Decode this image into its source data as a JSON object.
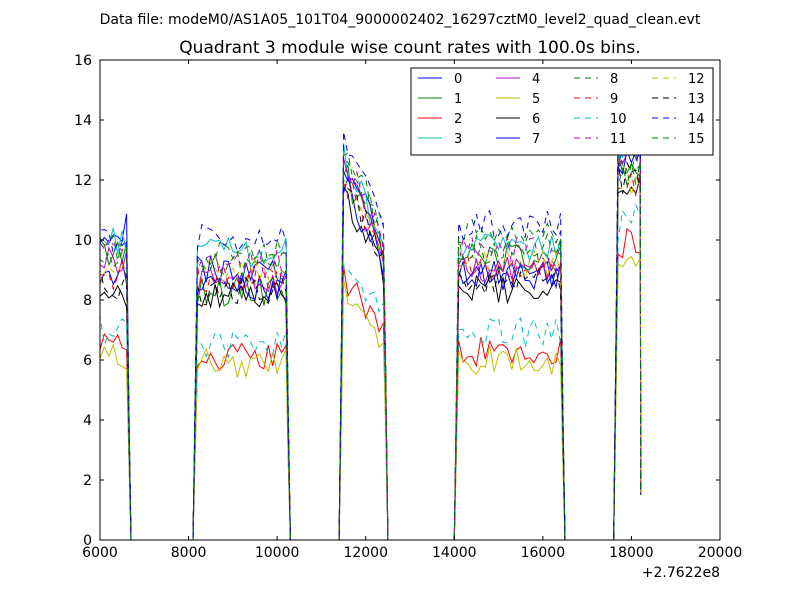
{
  "figure": {
    "suptitle": "Data file: modeM0/AS1A05_101T04_9000002402_16297cztM0_level2_quad_clean.evt"
  },
  "chart_data": {
    "type": "line",
    "title": "Quadrant 3 module wise count rates with 100.0s bins.",
    "xlabel": "",
    "ylabel": "",
    "xlim": [
      6000,
      20000
    ],
    "ylim": [
      0,
      16
    ],
    "xticks": [
      6000,
      8000,
      10000,
      12000,
      14000,
      16000,
      18000,
      20000
    ],
    "yticks": [
      0,
      2,
      4,
      6,
      8,
      10,
      12,
      14,
      16
    ],
    "x_offset_label": "+2.7622e8",
    "grid": false,
    "legend_position": "top-right",
    "legend_columns": 4,
    "segments": [
      [
        6000,
        6600
      ],
      [
        8200,
        10200
      ],
      [
        11500,
        12400
      ],
      [
        14100,
        16400
      ],
      [
        17700,
        18200
      ]
    ],
    "series": [
      {
        "name": "0",
        "color": "#0000ff",
        "dash": "solid",
        "levels": [
          10.4,
          9.0,
          12.6,
          8.9,
          12.9
        ]
      },
      {
        "name": "1",
        "color": "#008000",
        "dash": "solid",
        "levels": [
          9.6,
          8.3,
          12.3,
          9.4,
          12.2
        ]
      },
      {
        "name": "2",
        "color": "#ff0000",
        "dash": "solid",
        "levels": [
          6.8,
          6.1,
          8.8,
          6.3,
          10.0
        ]
      },
      {
        "name": "3",
        "color": "#00bfbf",
        "dash": "solid",
        "levels": [
          10.0,
          9.6,
          12.8,
          9.8,
          13.4
        ]
      },
      {
        "name": "4",
        "color": "#bf00bf",
        "dash": "solid",
        "levels": [
          9.3,
          8.6,
          12.4,
          9.0,
          12.4
        ]
      },
      {
        "name": "5",
        "color": "#bfbf00",
        "dash": "solid",
        "levels": [
          6.1,
          5.9,
          8.4,
          6.0,
          9.0
        ]
      },
      {
        "name": "6",
        "color": "#000000",
        "dash": "solid",
        "levels": [
          8.0,
          8.1,
          11.5,
          8.4,
          12.0
        ]
      },
      {
        "name": "7",
        "color": "#0000ff",
        "dash": "solid",
        "levels": [
          8.9,
          8.5,
          11.9,
          8.8,
          12.5
        ]
      },
      {
        "name": "8",
        "color": "#008000",
        "dash": "dashed",
        "levels": [
          9.8,
          9.5,
          13.2,
          10.2,
          12.5
        ]
      },
      {
        "name": "9",
        "color": "#ff0000",
        "dash": "dashed",
        "levels": [
          8.8,
          8.7,
          12.1,
          9.0,
          11.8
        ]
      },
      {
        "name": "10",
        "color": "#00bfbf",
        "dash": "dashed",
        "levels": [
          7.0,
          6.5,
          9.6,
          6.9,
          10.6
        ]
      },
      {
        "name": "11",
        "color": "#bf00bf",
        "dash": "dashed",
        "levels": [
          9.6,
          9.2,
          12.8,
          9.6,
          13.0
        ]
      },
      {
        "name": "12",
        "color": "#bfbf00",
        "dash": "dashed",
        "levels": [
          8.8,
          9.0,
          12.2,
          9.2,
          12.0
        ]
      },
      {
        "name": "13",
        "color": "#000000",
        "dash": "dashed",
        "levels": [
          8.5,
          8.3,
          12.0,
          8.7,
          12.0
        ]
      },
      {
        "name": "14",
        "color": "#0000ff",
        "dash": "dashed",
        "levels": [
          10.0,
          10.1,
          13.5,
          10.5,
          13.2
        ]
      },
      {
        "name": "15",
        "color": "#008000",
        "dash": "dashed",
        "levels": [
          9.4,
          9.3,
          13.0,
          9.7,
          12.4
        ]
      }
    ]
  }
}
